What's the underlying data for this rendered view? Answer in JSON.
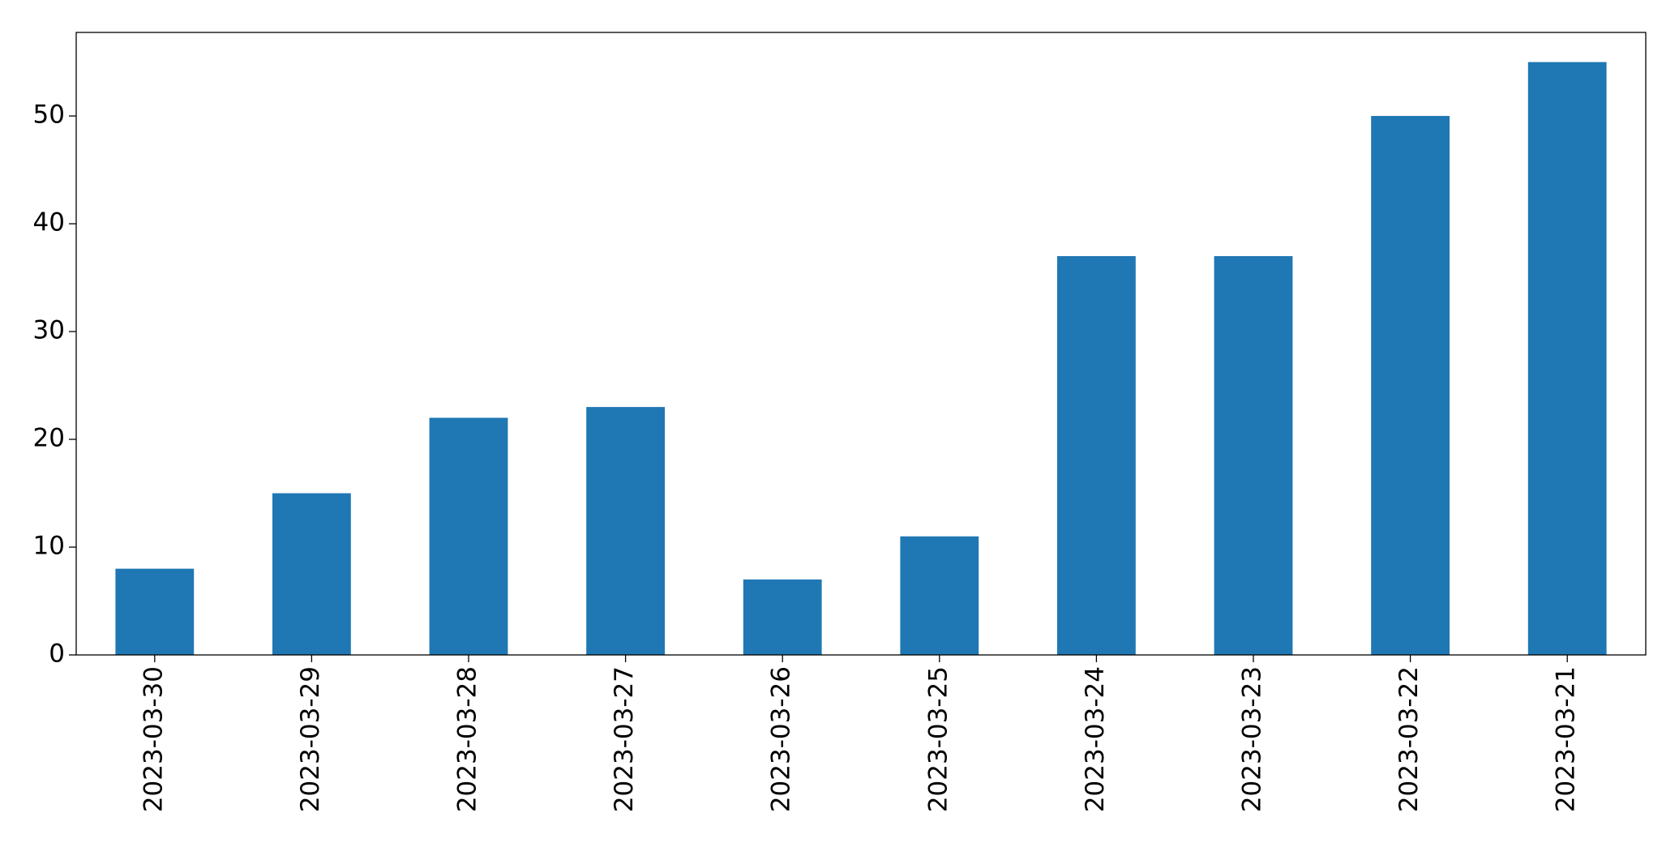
{
  "chart_data": {
    "type": "bar",
    "categories": [
      "2023-03-30",
      "2023-03-29",
      "2023-03-28",
      "2023-03-27",
      "2023-03-26",
      "2023-03-25",
      "2023-03-24",
      "2023-03-23",
      "2023-03-22",
      "2023-03-21"
    ],
    "values": [
      8,
      15,
      22,
      23,
      7,
      11,
      37,
      37,
      50,
      55
    ],
    "color": "#1f77b4",
    "ylim": [
      0,
      57.75
    ],
    "yticks": [
      0,
      10,
      20,
      30,
      40,
      50
    ],
    "grid": false
  }
}
